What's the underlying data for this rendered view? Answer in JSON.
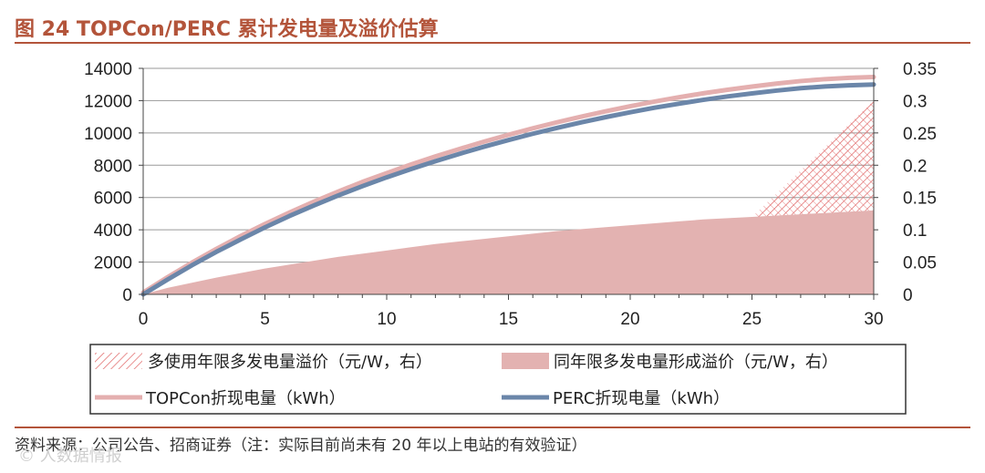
{
  "header": {
    "title": "图 24 TOPCon/PERC 累计发电量及溢价估算"
  },
  "footer": {
    "source": "资料来源：公司公告、招商证券（注：实际目前尚未有 20 年以上电站的有效验证）",
    "watermark": "© 人数据情报"
  },
  "colors": {
    "accent": "#B3543A",
    "topcon_line": "#E4AFAF",
    "perc_line": "#6B86A9",
    "area_fill": "#E3B2B1",
    "hatch": "#E06666"
  },
  "chart_data": {
    "type": "area",
    "x_label": "",
    "y_left_label": "",
    "y_right_label": "",
    "xlim": [
      0,
      30
    ],
    "ylim_left": [
      0,
      14000
    ],
    "ylim_right": [
      0,
      0.35
    ],
    "x_ticks": [
      "0",
      "5",
      "10",
      "15",
      "20",
      "25",
      "30"
    ],
    "y_left_ticks": [
      "0",
      "2000",
      "4000",
      "6000",
      "8000",
      "10000",
      "12000",
      "14000"
    ],
    "y_right_ticks": [
      "0",
      "0.05",
      "0.1",
      "0.15",
      "0.2",
      "0.25",
      "0.3",
      "0.35"
    ],
    "grid": true,
    "x": [
      0,
      1,
      2,
      3,
      4,
      5,
      6,
      7,
      8,
      9,
      10,
      11,
      12,
      13,
      14,
      15,
      16,
      17,
      18,
      19,
      20,
      21,
      22,
      23,
      24,
      25,
      26,
      27,
      28,
      29,
      30
    ],
    "series": [
      {
        "name": "TOPCon折现电量（kWh）",
        "axis": "left",
        "kind": "line",
        "values": [
          0,
          950,
          1850,
          2700,
          3500,
          4250,
          4950,
          5620,
          6250,
          6850,
          7400,
          7930,
          8430,
          8900,
          9350,
          9770,
          10170,
          10550,
          10900,
          11230,
          11540,
          11830,
          12100,
          12340,
          12560,
          12760,
          12940,
          13100,
          13220,
          13300,
          13350
        ]
      },
      {
        "name": "PERC折现电量（kWh）",
        "axis": "left",
        "kind": "line",
        "values": [
          0,
          920,
          1800,
          2630,
          3400,
          4150,
          4850,
          5500,
          6120,
          6700,
          7250,
          7760,
          8250,
          8710,
          9150,
          9560,
          9950,
          10310,
          10660,
          10980,
          11280,
          11560,
          11810,
          12050,
          12260,
          12450,
          12620,
          12770,
          12880,
          12950,
          13000
        ]
      },
      {
        "name": "同年限多发电量形成溢价（元/W，右）",
        "axis": "right",
        "kind": "area",
        "values": [
          0,
          0.01,
          0.018,
          0.026,
          0.033,
          0.04,
          0.046,
          0.052,
          0.058,
          0.063,
          0.068,
          0.073,
          0.078,
          0.082,
          0.086,
          0.09,
          0.094,
          0.098,
          0.101,
          0.104,
          0.107,
          0.11,
          0.113,
          0.116,
          0.118,
          0.12,
          0.122,
          0.124,
          0.126,
          0.128,
          0.13
        ]
      },
      {
        "name": "多使用年限多发电量溢价（元/W，右）",
        "axis": "right",
        "kind": "hatched-area",
        "x": [
          25,
          30
        ],
        "values": [
          0.12,
          0.3
        ]
      }
    ],
    "legend": [
      {
        "label": "多使用年限多发电量溢价（元/W，右）",
        "style": "hatch"
      },
      {
        "label": "同年限多发电量形成溢价（元/W，右）",
        "style": "fill"
      },
      {
        "label": "TOPCon折现电量（kWh）",
        "style": "line-pink"
      },
      {
        "label": "PERC折现电量（kWh）",
        "style": "line-blue"
      }
    ]
  }
}
